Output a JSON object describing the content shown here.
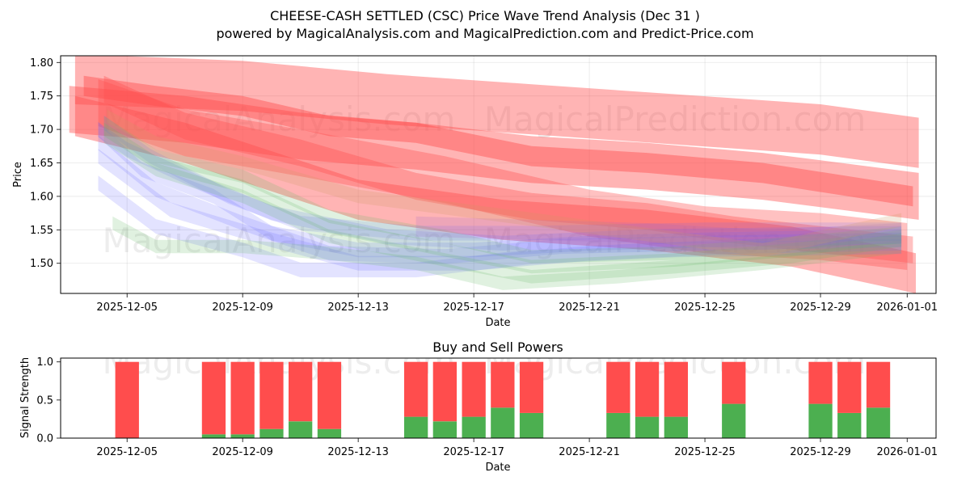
{
  "chart_data": [
    {
      "type": "area",
      "title_line1": "CHEESE-CASH SETTLED (CSC) Price Wave Trend Analysis (Dec 31 )",
      "title_line2": "powered by MagicalAnalysis.com and MagicalPrediction.com and Predict-Price.com",
      "xlabel": "Date",
      "ylabel": "Price",
      "x_tick_labels": [
        "2025-12-05",
        "2025-12-09",
        "2025-12-13",
        "2025-12-17",
        "2025-12-21",
        "2025-12-25",
        "2025-12-29",
        "2026-01-01"
      ],
      "x_tick_days": [
        4,
        8,
        12,
        16,
        20,
        24,
        28,
        31
      ],
      "y_ticks": [
        1.5,
        1.55,
        1.6,
        1.65,
        1.7,
        1.75,
        1.8
      ],
      "y_tick_labels": [
        "1.50",
        "1.55",
        "1.60",
        "1.65",
        "1.70",
        "1.75",
        "1.80"
      ],
      "xlim_days": [
        1.7,
        32.0
      ],
      "ylim": [
        1.455,
        1.81
      ],
      "grid": true,
      "watermarks": [
        "MagicalAnalysis.com",
        "MagicalPrediction.com"
      ],
      "colors": {
        "red": "#ff4d4d",
        "blue": "#6666ff",
        "green": "#66bb66",
        "purple": "#9966cc",
        "tan": "#cc9966"
      },
      "series": [
        {
          "name": "red-band-upper",
          "color": "red",
          "opacity": 0.42,
          "width": 0.075,
          "points": [
            [
              2.2,
              1.775
            ],
            [
              8,
              1.765
            ],
            [
              13,
              1.745
            ],
            [
              18,
              1.73
            ],
            [
              23,
              1.715
            ],
            [
              28,
              1.7
            ],
            [
              31.4,
              1.68
            ]
          ]
        },
        {
          "name": "red-band-mid",
          "color": "red",
          "opacity": 0.42,
          "width": 0.07,
          "points": [
            [
              2.0,
              1.73
            ],
            [
              6,
              1.715
            ],
            [
              10,
              1.69
            ],
            [
              14,
              1.675
            ],
            [
              18,
              1.655
            ],
            [
              22,
              1.645
            ],
            [
              26,
              1.63
            ],
            [
              31.4,
              1.6
            ]
          ]
        },
        {
          "name": "red-band-low",
          "color": "red",
          "opacity": 0.42,
          "width": 0.06,
          "points": [
            [
              2.2,
              1.72
            ],
            [
              6,
              1.68
            ],
            [
              12,
              1.595
            ],
            [
              17,
              1.565
            ],
            [
              22,
              1.55
            ],
            [
              27,
              1.525
            ],
            [
              31.3,
              1.485
            ]
          ]
        },
        {
          "name": "red-band-4",
          "color": "red",
          "opacity": 0.35,
          "width": 0.07,
          "points": [
            [
              3.0,
              1.74
            ],
            [
              6,
              1.695
            ],
            [
              10,
              1.665
            ],
            [
              15,
              1.625
            ],
            [
              20,
              1.575
            ],
            [
              24,
              1.55
            ],
            [
              28,
              1.54
            ],
            [
              31.0,
              1.525
            ]
          ]
        },
        {
          "name": "red-band-5",
          "color": "red",
          "opacity": 0.45,
          "width": 0.03,
          "points": [
            [
              2.5,
              1.765
            ],
            [
              5,
              1.75
            ],
            [
              8,
              1.735
            ],
            [
              11,
              1.705
            ],
            [
              14,
              1.695
            ],
            [
              18,
              1.66
            ],
            [
              22,
              1.65
            ],
            [
              26,
              1.635
            ],
            [
              31.2,
              1.6
            ]
          ]
        },
        {
          "name": "red-band-6",
          "color": "red",
          "opacity": 0.35,
          "width": 0.04,
          "points": [
            [
              3.2,
              1.76
            ],
            [
              6,
              1.705
            ],
            [
              10,
              1.665
            ],
            [
              14,
              1.615
            ],
            [
              18,
              1.585
            ],
            [
              22,
              1.57
            ],
            [
              25,
              1.55
            ],
            [
              31.2,
              1.52
            ]
          ]
        },
        {
          "name": "blue-band-1",
          "color": "blue",
          "opacity": 0.18,
          "width": 0.022,
          "points": [
            [
              3,
              1.7
            ],
            [
              4.5,
              1.64
            ],
            [
              7,
              1.6
            ],
            [
              9,
              1.545
            ],
            [
              12,
              1.52
            ],
            [
              16,
              1.52
            ],
            [
              20,
              1.53
            ],
            [
              24,
              1.535
            ],
            [
              30.8,
              1.54
            ]
          ]
        },
        {
          "name": "blue-band-2",
          "color": "blue",
          "opacity": 0.18,
          "width": 0.022,
          "points": [
            [
              3,
              1.68
            ],
            [
              5,
              1.61
            ],
            [
              8,
              1.56
            ],
            [
              11,
              1.515
            ],
            [
              15,
              1.51
            ],
            [
              19,
              1.525
            ],
            [
              24,
              1.53
            ],
            [
              30.8,
              1.535
            ]
          ]
        },
        {
          "name": "blue-band-3",
          "color": "blue",
          "opacity": 0.18,
          "width": 0.022,
          "points": [
            [
              3,
              1.66
            ],
            [
              5.5,
              1.58
            ],
            [
              9,
              1.535
            ],
            [
              12,
              1.5
            ],
            [
              16,
              1.5
            ],
            [
              20,
              1.515
            ],
            [
              25,
              1.525
            ],
            [
              30.8,
              1.53
            ]
          ]
        },
        {
          "name": "blue-band-4",
          "color": "blue",
          "opacity": 0.18,
          "width": 0.022,
          "points": [
            [
              3,
              1.62
            ],
            [
              5,
              1.555
            ],
            [
              8,
              1.52
            ],
            [
              10,
              1.49
            ],
            [
              14,
              1.49
            ],
            [
              18,
              1.51
            ],
            [
              23,
              1.52
            ],
            [
              30.8,
              1.525
            ]
          ]
        },
        {
          "name": "blue-band-5",
          "color": "blue",
          "opacity": 0.18,
          "width": 0.022,
          "points": [
            [
              3,
              1.7
            ],
            [
              4,
              1.67
            ],
            [
              6.5,
              1.62
            ],
            [
              9,
              1.575
            ],
            [
              13,
              1.54
            ],
            [
              17,
              1.53
            ],
            [
              22,
              1.54
            ],
            [
              30.8,
              1.545
            ]
          ]
        },
        {
          "name": "blue-band-6",
          "color": "blue",
          "opacity": 0.16,
          "width": 0.022,
          "points": [
            [
              3.2,
              1.71
            ],
            [
              4.8,
              1.66
            ],
            [
              7.5,
              1.6
            ],
            [
              10,
              1.56
            ],
            [
              14,
              1.545
            ],
            [
              18,
              1.545
            ],
            [
              24,
              1.55
            ],
            [
              30.8,
              1.55
            ]
          ]
        },
        {
          "name": "green-band-1",
          "color": "green",
          "opacity": 0.2,
          "width": 0.02,
          "points": [
            [
              3.2,
              1.71
            ],
            [
              5,
              1.66
            ],
            [
              8,
              1.63
            ],
            [
              11,
              1.57
            ],
            [
              15,
              1.54
            ],
            [
              18,
              1.51
            ],
            [
              23,
              1.515
            ],
            [
              27,
              1.53
            ],
            [
              30.8,
              1.545
            ]
          ]
        },
        {
          "name": "green-band-2",
          "color": "green",
          "opacity": 0.2,
          "width": 0.02,
          "points": [
            [
              3.2,
              1.7
            ],
            [
              5,
              1.65
            ],
            [
              8,
              1.615
            ],
            [
              11,
              1.555
            ],
            [
              15,
              1.52
            ],
            [
              18,
              1.495
            ],
            [
              23,
              1.505
            ],
            [
              27,
              1.52
            ],
            [
              30.8,
              1.54
            ]
          ]
        },
        {
          "name": "green-band-3",
          "color": "green",
          "opacity": 0.2,
          "width": 0.02,
          "points": [
            [
              3.2,
              1.69
            ],
            [
              5,
              1.64
            ],
            [
              8,
              1.6
            ],
            [
              11,
              1.54
            ],
            [
              15,
              1.505
            ],
            [
              18,
              1.48
            ],
            [
              23,
              1.495
            ],
            [
              27,
              1.51
            ],
            [
              30.8,
              1.535
            ]
          ]
        },
        {
          "name": "green-band-4",
          "color": "green",
          "opacity": 0.2,
          "width": 0.02,
          "points": [
            [
              3.5,
              1.56
            ],
            [
              5,
              1.525
            ],
            [
              8,
              1.525
            ],
            [
              11,
              1.515
            ],
            [
              14,
              1.5
            ],
            [
              17,
              1.47
            ],
            [
              21,
              1.48
            ],
            [
              26,
              1.5
            ],
            [
              30.8,
              1.525
            ]
          ]
        },
        {
          "name": "purple-band",
          "color": "purple",
          "opacity": 0.18,
          "width": 0.03,
          "points": [
            [
              14,
              1.555
            ],
            [
              18,
              1.55
            ],
            [
              22,
              1.545
            ],
            [
              26,
              1.535
            ],
            [
              30.8,
              1.545
            ]
          ]
        },
        {
          "name": "tan-band",
          "color": "tan",
          "opacity": 0.22,
          "width": 0.02,
          "points": [
            [
              3.3,
              1.72
            ],
            [
              5,
              1.68
            ],
            [
              8,
              1.65
            ],
            [
              12,
              1.6
            ],
            [
              26,
              1.52
            ],
            [
              30.8,
              1.565
            ]
          ]
        }
      ]
    },
    {
      "type": "bar",
      "title": "Buy and Sell Powers",
      "xlabel": "Date",
      "ylabel": "Signal Strength",
      "x_tick_labels": [
        "2025-12-05",
        "2025-12-09",
        "2025-12-13",
        "2025-12-17",
        "2025-12-21",
        "2025-12-25",
        "2025-12-29",
        "2026-01-01"
      ],
      "x_tick_days": [
        4,
        8,
        12,
        16,
        20,
        24,
        28,
        31
      ],
      "y_ticks": [
        0.0,
        0.5,
        1.0
      ],
      "y_tick_labels": [
        "0.0",
        "0.5",
        "1.0"
      ],
      "xlim_days": [
        1.7,
        32.0
      ],
      "ylim": [
        0,
        1.05
      ],
      "watermarks": [
        "MagicalAnalysis.com",
        "MagicalPrediction.com"
      ],
      "colors": {
        "buy": "#4caf50",
        "sell": "#ff4d4d"
      },
      "bars": [
        {
          "day": 4,
          "buy": 0.0,
          "sell": 1.0
        },
        {
          "day": 7,
          "buy": 0.05,
          "sell": 0.95
        },
        {
          "day": 8,
          "buy": 0.05,
          "sell": 0.95
        },
        {
          "day": 9,
          "buy": 0.12,
          "sell": 0.88
        },
        {
          "day": 10,
          "buy": 0.22,
          "sell": 0.78
        },
        {
          "day": 11,
          "buy": 0.12,
          "sell": 0.88
        },
        {
          "day": 14,
          "buy": 0.28,
          "sell": 0.72
        },
        {
          "day": 15,
          "buy": 0.22,
          "sell": 0.78
        },
        {
          "day": 16,
          "buy": 0.28,
          "sell": 0.72
        },
        {
          "day": 17,
          "buy": 0.4,
          "sell": 0.6
        },
        {
          "day": 18,
          "buy": 0.33,
          "sell": 0.67
        },
        {
          "day": 21,
          "buy": 0.33,
          "sell": 0.67
        },
        {
          "day": 22,
          "buy": 0.28,
          "sell": 0.72
        },
        {
          "day": 23,
          "buy": 0.28,
          "sell": 0.72
        },
        {
          "day": 25,
          "buy": 0.45,
          "sell": 0.55
        },
        {
          "day": 28,
          "buy": 0.45,
          "sell": 0.55
        },
        {
          "day": 29,
          "buy": 0.33,
          "sell": 0.67
        },
        {
          "day": 30,
          "buy": 0.4,
          "sell": 0.6
        }
      ]
    }
  ]
}
